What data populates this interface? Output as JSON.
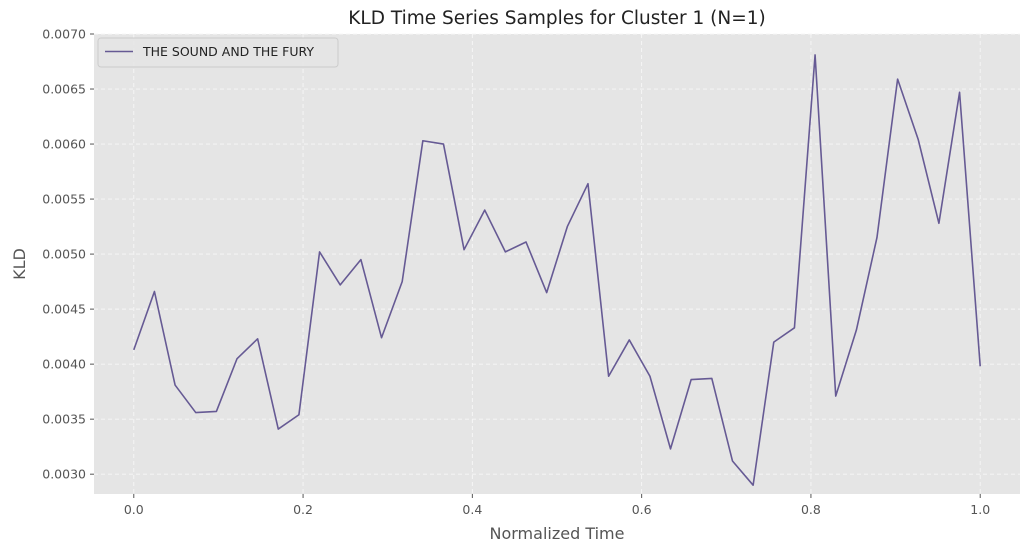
{
  "chart_data": {
    "type": "line",
    "title": "KLD Time Series Samples for Cluster 1 (N=1)",
    "xlabel": "Normalized Time",
    "ylabel": "KLD",
    "xlim": [
      -0.047,
      1.047
    ],
    "ylim": [
      0.00282,
      0.007
    ],
    "xticks": [
      0.0,
      0.2,
      0.4,
      0.6,
      0.8,
      1.0
    ],
    "xtick_labels": [
      "0.0",
      "0.2",
      "0.4",
      "0.6",
      "0.8",
      "1.0"
    ],
    "yticks": [
      0.003,
      0.0035,
      0.004,
      0.0045,
      0.005,
      0.0055,
      0.006,
      0.0065,
      0.007
    ],
    "ytick_labels": [
      "0.0030",
      "0.0035",
      "0.0040",
      "0.0045",
      "0.0050",
      "0.0055",
      "0.0060",
      "0.0065",
      "0.0070"
    ],
    "grid": true,
    "legend_position": "top-left",
    "colors": {
      "line": "#665a94",
      "plot_bg": "#e5e5e5",
      "grid": "#f7f7f7"
    },
    "series": [
      {
        "name": "THE SOUND AND THE FURY",
        "x": [
          0.0,
          0.0244,
          0.0488,
          0.0732,
          0.0976,
          0.122,
          0.1463,
          0.1707,
          0.1951,
          0.2195,
          0.2439,
          0.2683,
          0.2927,
          0.3171,
          0.3415,
          0.3659,
          0.3902,
          0.4146,
          0.439,
          0.4634,
          0.4878,
          0.5122,
          0.5366,
          0.561,
          0.5854,
          0.6098,
          0.6341,
          0.6585,
          0.6829,
          0.7073,
          0.7317,
          0.7561,
          0.7805,
          0.8049,
          0.8293,
          0.8537,
          0.878,
          0.9024,
          0.9268,
          0.9512,
          0.9756,
          1.0
        ],
        "y": [
          0.00413,
          0.00466,
          0.00381,
          0.00356,
          0.00357,
          0.00405,
          0.00423,
          0.00341,
          0.00354,
          0.00502,
          0.00472,
          0.00495,
          0.00424,
          0.00475,
          0.00603,
          0.006,
          0.00504,
          0.0054,
          0.00502,
          0.00511,
          0.00465,
          0.00525,
          0.00564,
          0.00389,
          0.00422,
          0.00389,
          0.00323,
          0.00386,
          0.00387,
          0.00312,
          0.0029,
          0.0042,
          0.00433,
          0.00681,
          0.00371,
          0.00431,
          0.00515,
          0.00659,
          0.00604,
          0.00528,
          0.00647,
          0.00398
        ]
      }
    ]
  }
}
